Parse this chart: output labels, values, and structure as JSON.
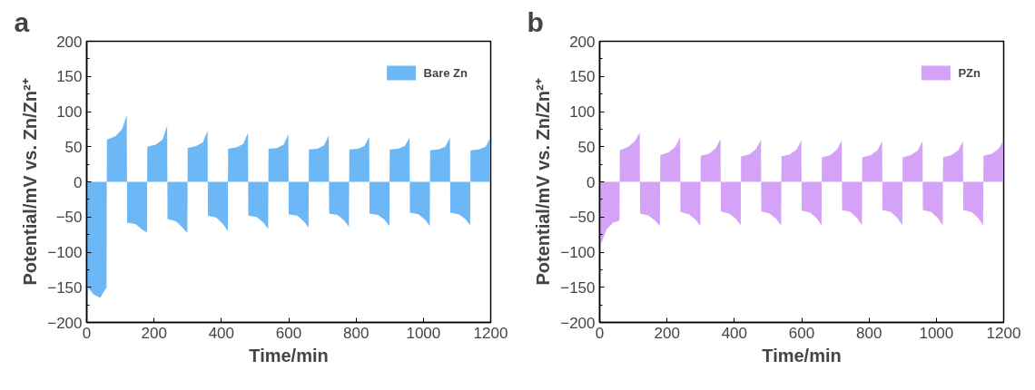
{
  "chart_data": [
    {
      "type": "area",
      "annotations": [
        "a"
      ],
      "xlabel": "Time/min",
      "ylabel": "Potential/mV vs. Zn/Zn²⁺",
      "xlim": [
        0,
        1200
      ],
      "ylim": [
        -200,
        200
      ],
      "xticks": [
        0,
        200,
        400,
        600,
        800,
        1000,
        1200
      ],
      "yticks": [
        -200,
        -150,
        -100,
        -50,
        0,
        50,
        100,
        150,
        200
      ],
      "legend": "top right",
      "grid": false,
      "x": [
        0,
        3,
        20,
        40,
        59,
        60,
        85,
        105,
        119,
        120,
        145,
        165,
        179,
        180,
        205,
        225,
        239,
        240,
        265,
        285,
        299,
        300,
        325,
        345,
        359,
        360,
        385,
        405,
        419,
        420,
        445,
        465,
        479,
        480,
        505,
        525,
        539,
        540,
        565,
        585,
        599,
        600,
        625,
        645,
        659,
        660,
        685,
        705,
        719,
        720,
        745,
        765,
        779,
        780,
        805,
        825,
        839,
        840,
        865,
        885,
        899,
        900,
        925,
        945,
        959,
        960,
        985,
        1005,
        1019,
        1020,
        1045,
        1065,
        1079,
        1080,
        1105,
        1125,
        1139,
        1140,
        1165,
        1185,
        1199
      ],
      "series": [
        {
          "name": "Bare Zn",
          "color": "#6cb8f6",
          "values": [
            -200,
            -150,
            -160,
            -165,
            -150,
            60,
            65,
            75,
            95,
            -58,
            -60,
            -68,
            -72,
            50,
            53,
            60,
            80,
            -53,
            -56,
            -65,
            -73,
            48,
            51,
            56,
            73,
            -48,
            -51,
            -60,
            -70,
            47,
            49,
            54,
            70,
            -48,
            -50,
            -58,
            -67,
            47,
            48,
            53,
            68,
            -46,
            -48,
            -56,
            -65,
            46,
            47,
            52,
            66,
            -45,
            -47,
            -55,
            -64,
            46,
            47,
            51,
            64,
            -45,
            -47,
            -54,
            -63,
            46,
            47,
            51,
            63,
            -44,
            -46,
            -54,
            -63,
            45,
            46,
            50,
            63,
            -44,
            -46,
            -53,
            -62,
            45,
            46,
            50,
            63
          ]
        }
      ]
    },
    {
      "type": "area",
      "annotations": [
        "b"
      ],
      "xlabel": "Time/min",
      "ylabel": "Potential/mV vs. Zn/Zn²⁺",
      "xlim": [
        0,
        1200
      ],
      "ylim": [
        -200,
        200
      ],
      "xticks": [
        0,
        200,
        400,
        600,
        800,
        1000,
        1200
      ],
      "yticks": [
        -200,
        -150,
        -100,
        -50,
        0,
        50,
        100,
        150,
        200
      ],
      "legend": "top right",
      "grid": false,
      "x": [
        0,
        3,
        20,
        40,
        59,
        60,
        85,
        105,
        119,
        120,
        145,
        165,
        179,
        180,
        205,
        225,
        239,
        240,
        265,
        285,
        299,
        300,
        325,
        345,
        359,
        360,
        385,
        405,
        419,
        420,
        445,
        465,
        479,
        480,
        505,
        525,
        539,
        540,
        565,
        585,
        599,
        600,
        625,
        645,
        659,
        660,
        685,
        705,
        719,
        720,
        745,
        765,
        779,
        780,
        805,
        825,
        839,
        840,
        865,
        885,
        899,
        900,
        925,
        945,
        959,
        960,
        985,
        1005,
        1019,
        1020,
        1045,
        1065,
        1079,
        1080,
        1105,
        1125,
        1139,
        1140,
        1165,
        1185,
        1199
      ],
      "series": [
        {
          "name": "PZn",
          "color": "#d4a3f8",
          "values": [
            -125,
            -90,
            -68,
            -58,
            -55,
            45,
            50,
            58,
            70,
            -45,
            -48,
            -55,
            -63,
            38,
            42,
            50,
            64,
            -43,
            -46,
            -54,
            -63,
            37,
            40,
            48,
            61,
            -42,
            -45,
            -53,
            -62,
            36,
            39,
            47,
            60,
            -42,
            -45,
            -53,
            -62,
            36,
            39,
            46,
            59,
            -41,
            -44,
            -52,
            -62,
            35,
            38,
            46,
            59,
            -40,
            -43,
            -52,
            -62,
            35,
            38,
            45,
            58,
            -40,
            -43,
            -52,
            -62,
            35,
            38,
            45,
            58,
            -40,
            -43,
            -52,
            -62,
            35,
            38,
            45,
            58,
            -40,
            -43,
            -52,
            -62,
            37,
            40,
            47,
            59
          ]
        }
      ]
    }
  ]
}
